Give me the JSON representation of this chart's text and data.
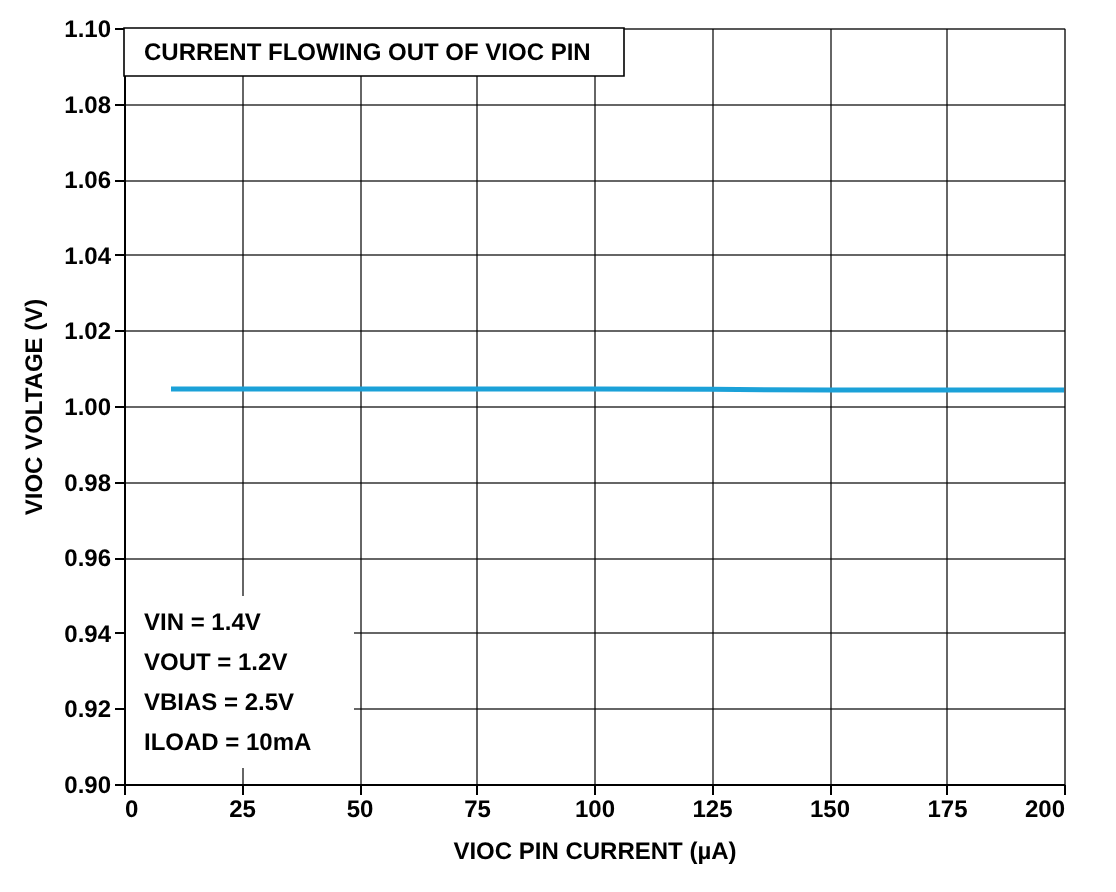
{
  "chart_data": {
    "type": "line",
    "xlabel": "VIOC PIN CURRENT (µA)",
    "ylabel": "VIOC VOLTAGE (V)",
    "series": [
      {
        "color": "#1ba1d8",
        "x": [
          10,
          25,
          50,
          75,
          100,
          125,
          150,
          175,
          200
        ],
        "values": [
          1.0045,
          1.0045,
          1.0045,
          1.0045,
          1.0045,
          1.0044,
          1.0042,
          1.0042,
          1.0042
        ]
      }
    ],
    "xlim": [
      0,
      200
    ],
    "xticks": [
      0,
      25,
      50,
      75,
      100,
      125,
      150,
      175,
      200
    ],
    "ylim": [
      0.9,
      1.1
    ],
    "yticks": [
      {
        "value": 0.9,
        "label": "0.90"
      },
      0.92,
      0.94,
      0.96,
      0.98,
      {
        "value": 1.0,
        "label": "1.00"
      },
      1.02,
      1.04,
      1.06,
      1.08,
      {
        "value": 1.1,
        "label": "1.10"
      }
    ],
    "grid": true,
    "marker": "none",
    "line_style": "solid",
    "annotations": [
      "CURRENT FLOWING OUT OF VIOC PIN",
      "VIN = 1.4V",
      "VOUT = 1.2V",
      "VBIAS = 2.5V",
      "ILOAD = 10mA"
    ]
  }
}
